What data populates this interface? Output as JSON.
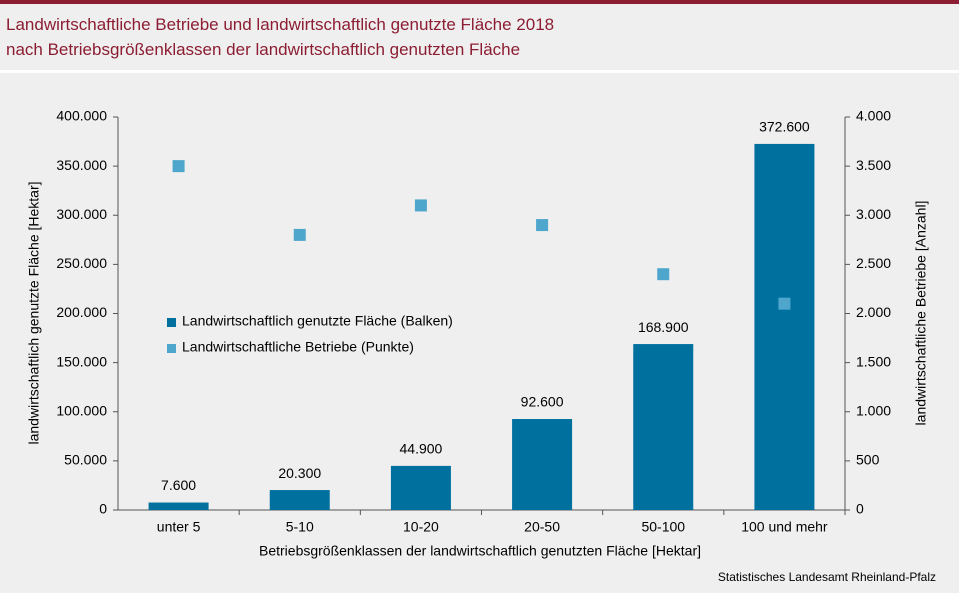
{
  "chart_data": {
    "type": "bar",
    "title_lines": [
      "Landwirtschaftliche Betriebe und landwirtschaftlich genutzte Fläche 2018",
      "nach Betriebsgrößenklassen der landwirtschaftlich genutzten Fläche"
    ],
    "x_label": "Betriebsgrößenklassen der landwirtschaftlich  genutzten  Fläche [Hektar]",
    "y_label": "landwirtschaftlich  genutzte  Fläche [Hektar]",
    "y2_label": "landwirtschaftliche  Betriebe [Anzahl]",
    "source": "Statistisches Landesamt Rheinland-Pfalz",
    "categories": [
      "unter 5",
      "5-10",
      "10-20",
      "20-50",
      "50-100",
      "100 und mehr"
    ],
    "series": [
      {
        "name": "Landwirtschaftlich genutzte Fläche (Balken)",
        "type": "bar",
        "color": "#00709f",
        "values": [
          7600,
          20300,
          44900,
          92600,
          168900,
          372600
        ],
        "value_labels": [
          "7.600",
          "20.300",
          "44.900",
          "92.600",
          "168.900",
          "372.600"
        ]
      },
      {
        "name": "Landwirtschaftliche Betriebe (Punkte)",
        "type": "scatter",
        "axis": "y2",
        "color": "#4ea6cc",
        "values": [
          3500,
          2800,
          3100,
          2900,
          2400,
          2100
        ]
      }
    ],
    "ylim": [
      0,
      400000
    ],
    "yticks": [
      0,
      {
        "value": 50000,
        "label": "50.000"
      },
      {
        "value": 100000,
        "label": "100.000"
      },
      {
        "value": 150000,
        "label": "150.000"
      },
      {
        "value": 200000,
        "label": "200.000"
      },
      {
        "value": 250000,
        "label": "250.000"
      },
      {
        "value": 300000,
        "label": "300.000"
      },
      {
        "value": 350000,
        "label": "350.000"
      },
      {
        "value": 400000,
        "label": "400.000"
      }
    ],
    "y2lim": [
      0,
      4000
    ],
    "y2ticks": [
      0,
      500,
      {
        "value": 1000,
        "label": "1.000"
      },
      {
        "value": 1500,
        "label": "1.500"
      },
      {
        "value": 2000,
        "label": "2.000"
      },
      {
        "value": 2500,
        "label": "2.500"
      },
      {
        "value": 3000,
        "label": "3.000"
      },
      {
        "value": 3500,
        "label": "3.500"
      },
      {
        "value": 4000,
        "label": "4.000"
      }
    ],
    "grid": false
  }
}
